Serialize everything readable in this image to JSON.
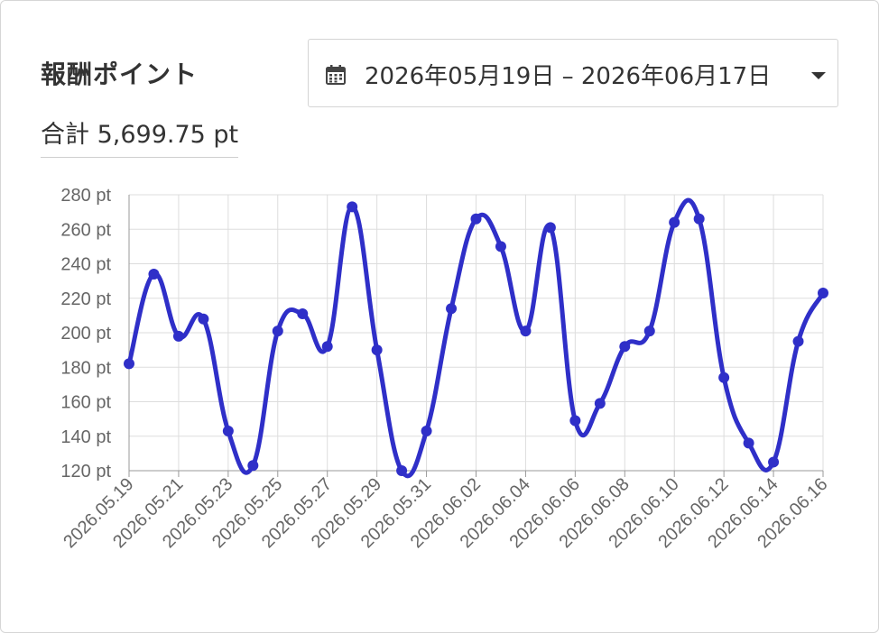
{
  "header": {
    "title": "報酬ポイント",
    "total_label": "合計 5,699.75 pt",
    "date_range": "2026年05月19日 – 2026年06月17日"
  },
  "icons": {
    "calendar": "calendar-icon",
    "dropdown": "caret-down-icon"
  },
  "colors": {
    "line": "#2f2fc8",
    "grid": "#dddddd",
    "axis_text": "#666666"
  },
  "chart_data": {
    "type": "line",
    "title": "",
    "xlabel": "",
    "ylabel": "",
    "unit": "pt",
    "ylim": [
      120,
      280
    ],
    "y_ticks": [
      "120 pt",
      "140 pt",
      "160 pt",
      "180 pt",
      "200 pt",
      "220 pt",
      "240 pt",
      "260 pt",
      "280 pt"
    ],
    "x_tick_labels": [
      "2026.05.19",
      "2026.05.21",
      "2026.05.23",
      "2026.05.25",
      "2026.05.27",
      "2026.05.29",
      "2026.05.31",
      "2026.06.02",
      "2026.06.04",
      "2026.06.06",
      "2026.06.08",
      "2026.06.10",
      "2026.06.12",
      "2026.06.14",
      "2026.06.16"
    ],
    "grid": true,
    "legend": "none",
    "categories": [
      "2026.05.19",
      "2026.05.20",
      "2026.05.21",
      "2026.05.22",
      "2026.05.23",
      "2026.05.24",
      "2026.05.25",
      "2026.05.26",
      "2026.05.27",
      "2026.05.28",
      "2026.05.29",
      "2026.05.30",
      "2026.05.31",
      "2026.06.01",
      "2026.06.02",
      "2026.06.03",
      "2026.06.04",
      "2026.06.05",
      "2026.06.06",
      "2026.06.07",
      "2026.06.08",
      "2026.06.09",
      "2026.06.10",
      "2026.06.11",
      "2026.06.12",
      "2026.06.13",
      "2026.06.14",
      "2026.06.15",
      "2026.06.16"
    ],
    "series": [
      {
        "values": [
          182,
          234,
          198,
          208,
          143,
          123,
          201,
          211,
          192,
          273,
          190,
          120,
          143,
          214,
          266,
          250,
          201,
          261,
          149,
          159,
          192,
          201,
          264,
          266,
          174,
          136,
          125,
          195,
          223
        ]
      }
    ]
  }
}
